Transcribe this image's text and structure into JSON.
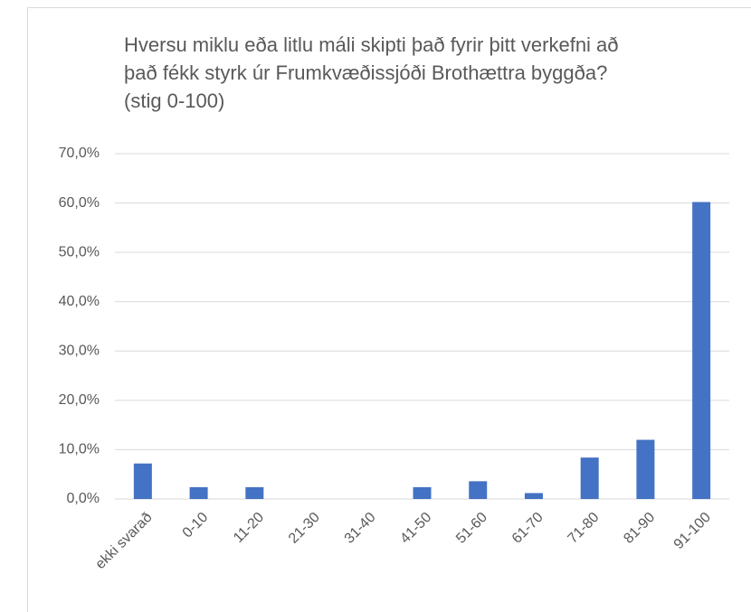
{
  "chart_data": {
    "type": "bar",
    "title": "Hversu miklu eða litlu máli skipti það fyrir þitt verkefni að það fékk styrk úr Frumkvæðissjóði Brothættra byggða? (stig 0-100)",
    "categories": [
      "ekki svarað",
      "0-10",
      "11-20",
      "21-30",
      "31-40",
      "41-50",
      "51-60",
      "61-70",
      "71-80",
      "81-90",
      "91-100"
    ],
    "values": [
      7.2,
      2.4,
      2.4,
      0,
      0,
      2.4,
      3.6,
      1.2,
      8.4,
      12.0,
      60.2
    ],
    "color": "#4472c4",
    "ylim": [
      0,
      70
    ],
    "yticks": [
      {
        "value": 0,
        "label": "0,0%"
      },
      {
        "value": 10,
        "label": "10,0%"
      },
      {
        "value": 20,
        "label": "20,0%"
      },
      {
        "value": 30,
        "label": "30,0%"
      },
      {
        "value": 40,
        "label": "40,0%"
      },
      {
        "value": 50,
        "label": "50,0%"
      },
      {
        "value": 60,
        "label": "60,0%"
      },
      {
        "value": 70,
        "label": "70,0%"
      }
    ],
    "grid": true
  }
}
